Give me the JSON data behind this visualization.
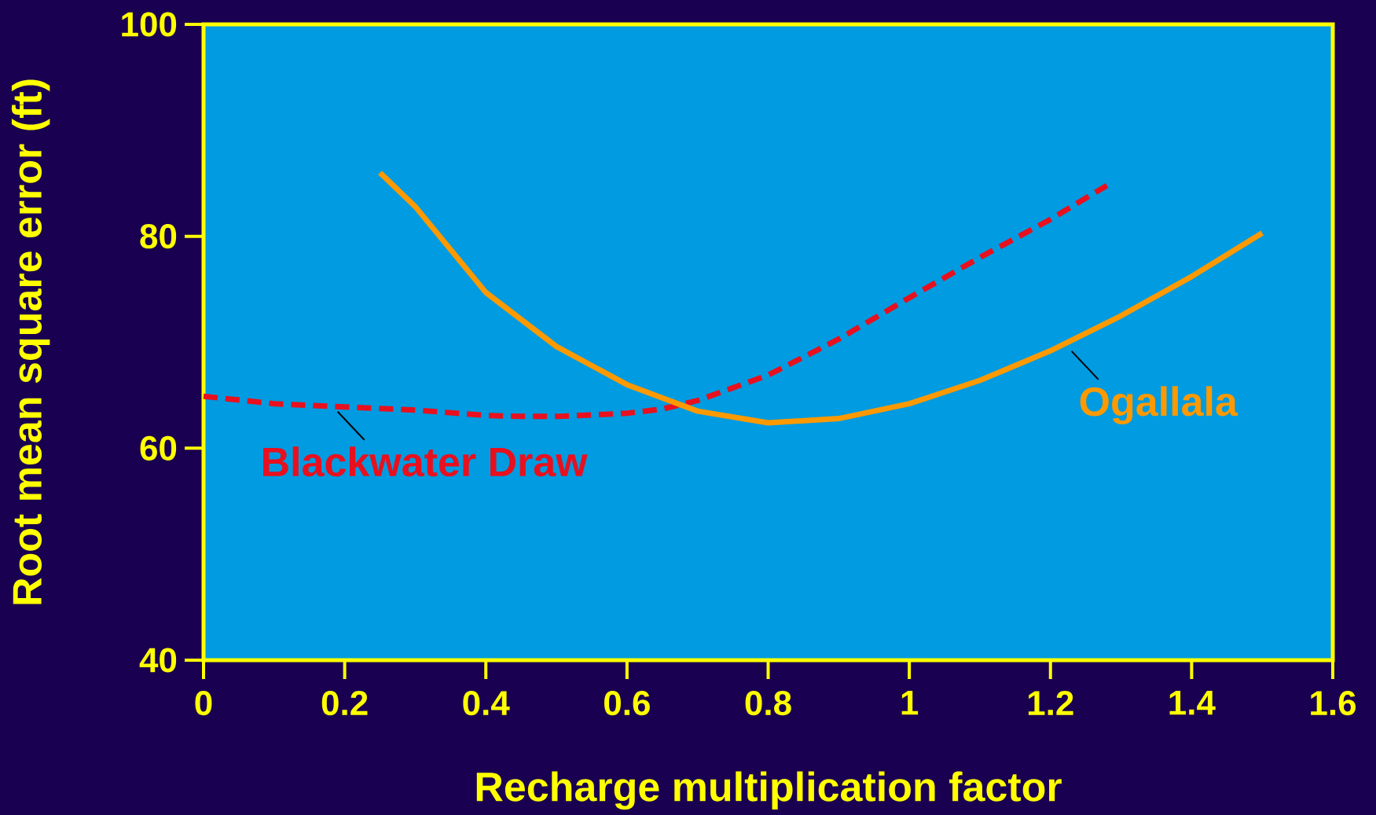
{
  "chart_data": {
    "type": "line",
    "xlabel": "Recharge multiplication factor",
    "ylabel": "Root mean square error (ft)",
    "xlim": [
      0,
      1.6
    ],
    "ylim": [
      40,
      100
    ],
    "xticks": [
      0,
      0.2,
      0.4,
      0.6,
      0.8,
      1,
      1.2,
      1.4,
      1.6
    ],
    "yticks": [
      40,
      60,
      80,
      100
    ],
    "series": [
      {
        "color": "#e8101e",
        "line_style": "dashed",
        "x": [
          0,
          0.1,
          0.2,
          0.3,
          0.4,
          0.45,
          0.5,
          0.6,
          0.65,
          0.7,
          0.8,
          0.9,
          1.0,
          1.1,
          1.2,
          1.28
        ],
        "values": [
          64.9,
          64.2,
          63.9,
          63.6,
          63.1,
          63.0,
          63.0,
          63.3,
          63.7,
          64.5,
          66.9,
          70.3,
          74.2,
          78.0,
          81.6,
          84.8
        ]
      },
      {
        "color": "#ff9900",
        "line_style": "solid",
        "x": [
          0.25,
          0.3,
          0.4,
          0.5,
          0.6,
          0.7,
          0.8,
          0.9,
          1.0,
          1.1,
          1.2,
          1.3,
          1.4,
          1.5
        ],
        "values": [
          86.0,
          82.8,
          74.7,
          69.6,
          66.0,
          63.5,
          62.4,
          62.8,
          64.2,
          66.4,
          69.2,
          72.5,
          76.2,
          80.3
        ]
      }
    ],
    "annotations": [
      {
        "text": "Blackwater Draw",
        "x": 0.19,
        "y": 63.9
      },
      {
        "text": "Ogallala",
        "x": 1.23,
        "y": 69.6
      }
    ]
  }
}
